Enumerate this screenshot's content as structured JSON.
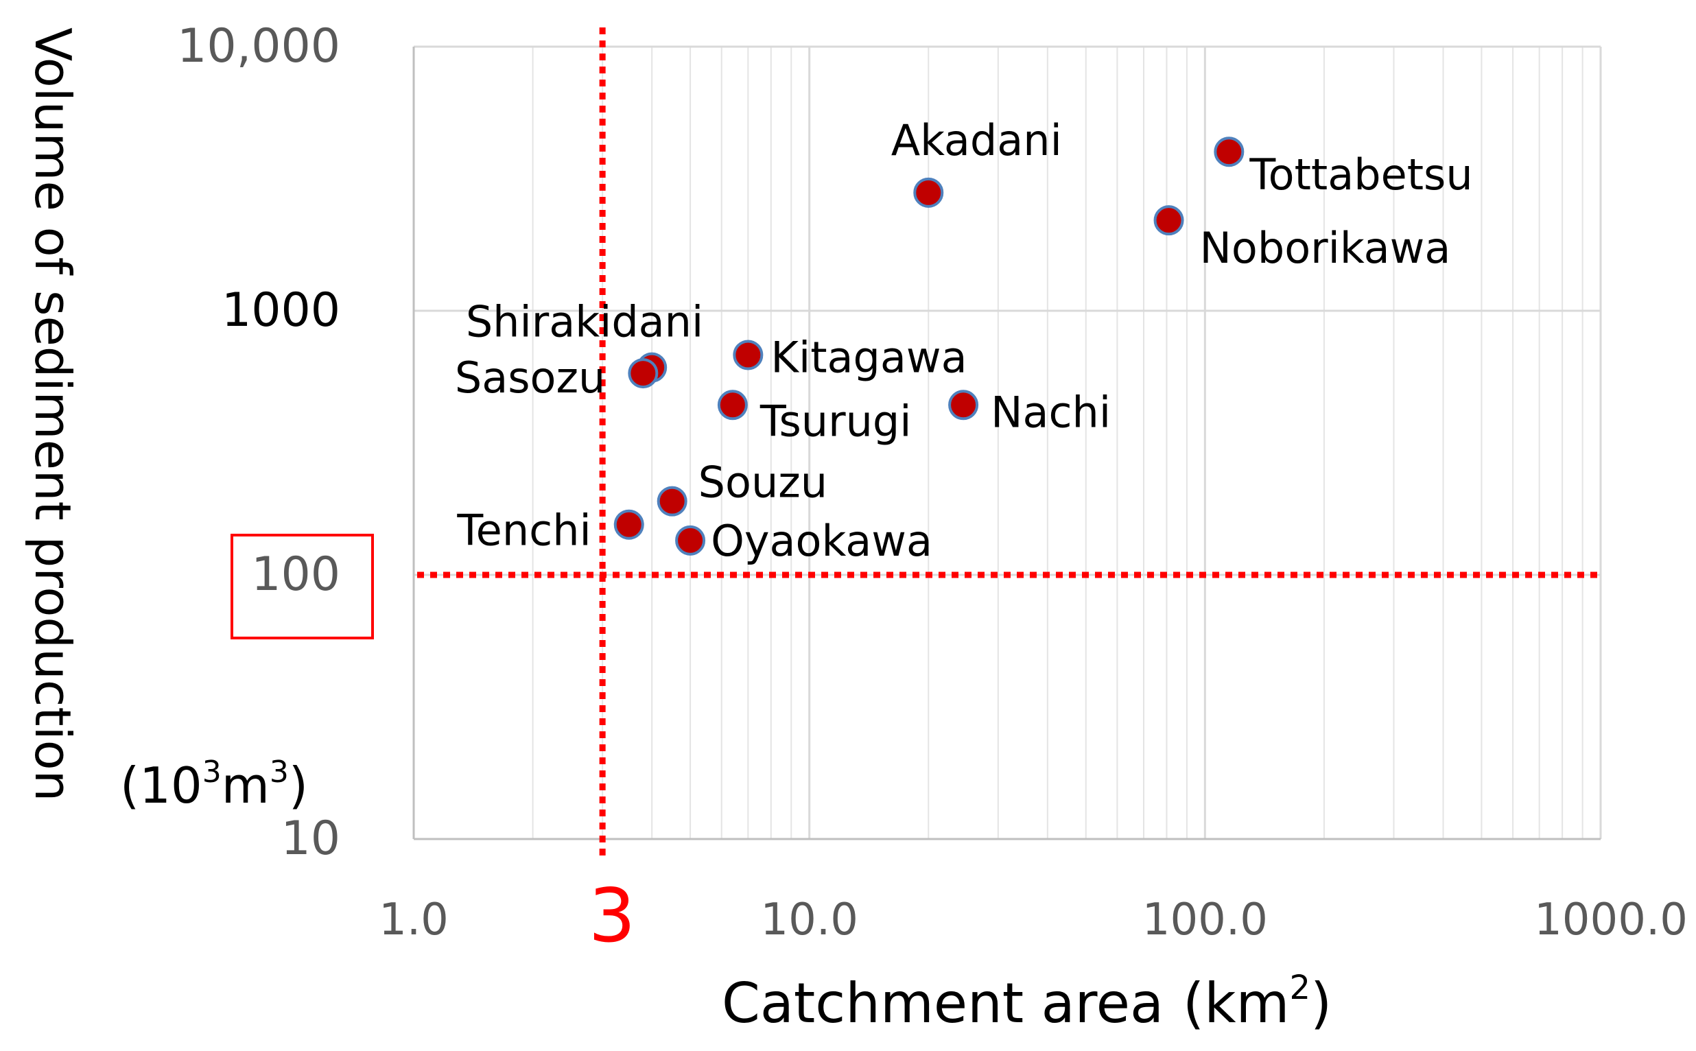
{
  "chart_data": {
    "type": "scatter",
    "title": "",
    "xlabel": "Catchment area",
    "xlabel_unit": "(km",
    "xlabel_unit_sup": "2",
    "xlabel_unit_close": ")",
    "ylabel": "Volume of sediment production",
    "yunit_parts": [
      "(10",
      "3",
      "m",
      "3",
      ")"
    ],
    "xscale": "log",
    "yscale": "log",
    "xlim": [
      1,
      1000
    ],
    "ylim": [
      10,
      10000
    ],
    "x_ticks": [
      {
        "value": 1,
        "label": "1.0"
      },
      {
        "value": 10,
        "label": "10.0"
      },
      {
        "value": 100,
        "label": "100.0"
      },
      {
        "value": 1000,
        "label": "1000.0"
      }
    ],
    "y_ticks": [
      {
        "value": 10,
        "label": "10"
      },
      {
        "value": 100,
        "label": "100"
      },
      {
        "value": 1000,
        "label": "1000"
      },
      {
        "value": 10000,
        "label": "10,000"
      }
    ],
    "grid": true,
    "points": [
      {
        "name": "Akadani",
        "x": 20,
        "y": 2800,
        "label_side": "above"
      },
      {
        "name": "Tottabetsu",
        "x": 115,
        "y": 4000,
        "label_side": "below-right"
      },
      {
        "name": "Noborikawa",
        "x": 81,
        "y": 2200,
        "label_side": "below-right"
      },
      {
        "name": "Shirakidani",
        "x": 4.0,
        "y": 610,
        "label_side": "upper-left"
      },
      {
        "name": "Sasozu",
        "x": 3.8,
        "y": 580,
        "label_side": "left"
      },
      {
        "name": "Kitagawa",
        "x": 7.0,
        "y": 680,
        "label_side": "right"
      },
      {
        "name": "Tsurugi",
        "x": 6.4,
        "y": 440,
        "label_side": "below-right"
      },
      {
        "name": "Nachi",
        "x": 24.5,
        "y": 440,
        "label_side": "right"
      },
      {
        "name": "Souzu",
        "x": 4.5,
        "y": 190,
        "label_side": "upper-right"
      },
      {
        "name": "Tenchi",
        "x": 3.5,
        "y": 155,
        "label_side": "left"
      },
      {
        "name": "Oyaokawa",
        "x": 5.0,
        "y": 135,
        "label_side": "right"
      }
    ],
    "threshold_lines": [
      {
        "axis": "x",
        "value": 3,
        "label": "3",
        "color": "#ff0000"
      },
      {
        "axis": "y",
        "value": 100,
        "color": "#ff0000",
        "highlight_tick": "100"
      }
    ],
    "marker_fill": "#c00000",
    "marker_stroke": "#4f81bd"
  }
}
